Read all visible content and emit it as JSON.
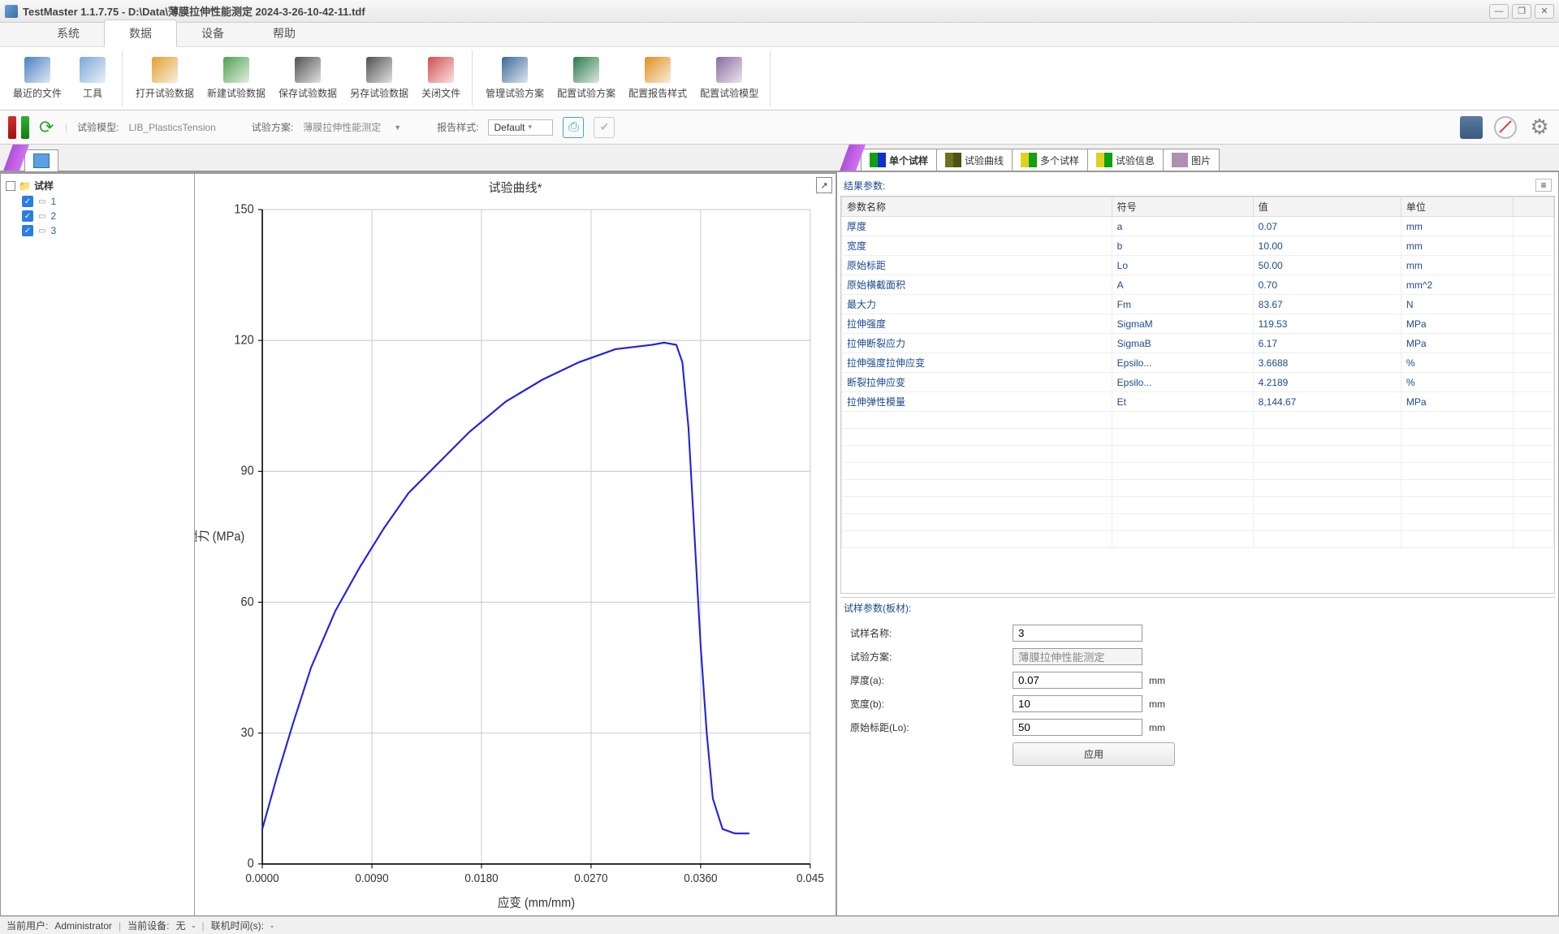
{
  "window": {
    "title": "TestMaster 1.1.7.75 - D:\\Data\\薄膜拉伸性能测定 2024-3-26-10-42-11.tdf"
  },
  "menubar": {
    "items": [
      "系统",
      "数据",
      "设备",
      "帮助"
    ],
    "active_index": 1
  },
  "ribbon": {
    "groups": [
      {
        "items": [
          {
            "label": "最近的文件",
            "color": "#4a80c0"
          },
          {
            "label": "工具",
            "color": "#7aa8d8"
          }
        ]
      },
      {
        "items": [
          {
            "label": "打开试验数据",
            "color": "#e0a030"
          },
          {
            "label": "新建试验数据",
            "color": "#50a050"
          },
          {
            "label": "保存试验数据",
            "color": "#505050"
          },
          {
            "label": "另存试验数据",
            "color": "#505050"
          },
          {
            "label": "关闭文件",
            "color": "#d05050"
          }
        ]
      },
      {
        "items": [
          {
            "label": "管理试验方案",
            "color": "#3a6a9a"
          },
          {
            "label": "配置试验方案",
            "color": "#2a7a4a"
          },
          {
            "label": "配置报告样式",
            "color": "#e09020"
          },
          {
            "label": "配置试验模型",
            "color": "#8a6aa0"
          }
        ]
      }
    ]
  },
  "toolbar2": {
    "test_model_label": "试验模型:",
    "test_model_value": "LIB_PlasticsTension",
    "test_plan_label": "试验方案:",
    "test_plan_value": "薄膜拉伸性能测定",
    "report_style_label": "报告样式:",
    "report_style_value": "Default"
  },
  "tree": {
    "root_label": "试样",
    "items": [
      {
        "num": "1",
        "checked": true
      },
      {
        "num": "2",
        "checked": true
      },
      {
        "num": "3",
        "checked": true
      }
    ]
  },
  "chart": {
    "title": "试验曲线*",
    "x_label": "应变 (mm/mm)",
    "y_label": "应力 (MPa)",
    "x_ticks": [
      "0.0000",
      "0.0090",
      "0.0180",
      "0.0270",
      "0.0360",
      "0.045"
    ],
    "y_ticks": [
      "0",
      "30",
      "60",
      "90",
      "120",
      "150"
    ],
    "xlim": [
      0,
      0.045
    ],
    "ylim": [
      0,
      150
    ],
    "line_color": "#2020e0",
    "grid_color": "#cccccc",
    "series": [
      [
        0.0,
        8
      ],
      [
        0.0012,
        20
      ],
      [
        0.0025,
        32
      ],
      [
        0.004,
        45
      ],
      [
        0.006,
        58
      ],
      [
        0.008,
        68
      ],
      [
        0.01,
        77
      ],
      [
        0.012,
        85
      ],
      [
        0.0145,
        92
      ],
      [
        0.017,
        99
      ],
      [
        0.02,
        106
      ],
      [
        0.023,
        111
      ],
      [
        0.026,
        115
      ],
      [
        0.029,
        118
      ],
      [
        0.032,
        119
      ],
      [
        0.033,
        119.5
      ],
      [
        0.034,
        119
      ],
      [
        0.0345,
        115
      ],
      [
        0.035,
        100
      ],
      [
        0.0355,
        75
      ],
      [
        0.036,
        50
      ],
      [
        0.0365,
        30
      ],
      [
        0.037,
        15
      ],
      [
        0.0378,
        8
      ],
      [
        0.0388,
        7
      ],
      [
        0.04,
        7
      ]
    ]
  },
  "right_tabs": {
    "items": [
      {
        "label": "单个试样",
        "colors": [
          "#10a010",
          "#1030d0"
        ]
      },
      {
        "label": "试验曲线",
        "colors": [
          "#707020",
          "#505010"
        ]
      },
      {
        "label": "多个试样",
        "colors": [
          "#e0d020",
          "#10a010"
        ]
      },
      {
        "label": "试验信息",
        "colors": [
          "#e0d020",
          "#10a010"
        ]
      },
      {
        "label": "图片",
        "colors": [
          "#b090b0",
          "#b090b0"
        ]
      }
    ],
    "active_index": 0
  },
  "results": {
    "section_title": "结果参数:",
    "columns": [
      "参数名称",
      "符号",
      "值",
      "单位"
    ],
    "rows": [
      [
        "厚度",
        "a",
        "0.07",
        "mm"
      ],
      [
        "宽度",
        "b",
        "10.00",
        "mm"
      ],
      [
        "原始标距",
        "Lo",
        "50.00",
        "mm"
      ],
      [
        "原始横截面积",
        "A",
        "0.70",
        "mm^2"
      ],
      [
        "最大力",
        "Fm",
        "83.67",
        "N"
      ],
      [
        "拉伸强度",
        "SigmaM",
        "119.53",
        "MPa"
      ],
      [
        "拉伸断裂应力",
        "SigmaB",
        "6.17",
        "MPa"
      ],
      [
        "拉伸强度拉伸应变",
        "Epsilo...",
        "3.6688",
        "%"
      ],
      [
        "断裂拉伸应变",
        "Epsilo...",
        "4.2189",
        "%"
      ],
      [
        "拉伸弹性模量",
        "Et",
        "8,144.67",
        "MPa"
      ]
    ]
  },
  "sample_params": {
    "section_title": "试样参数(板材):",
    "rows": [
      {
        "label": "试样名称:",
        "value": "3",
        "unit": "",
        "enabled": true
      },
      {
        "label": "试验方案:",
        "value": "薄膜拉伸性能测定",
        "unit": "",
        "enabled": false
      },
      {
        "label": "厚度(a):",
        "value": "0.07",
        "unit": "mm",
        "enabled": true
      },
      {
        "label": "宽度(b):",
        "value": "10",
        "unit": "mm",
        "enabled": true
      },
      {
        "label": "原始标距(Lo):",
        "value": "50",
        "unit": "mm",
        "enabled": true
      }
    ],
    "apply_label": "应用"
  },
  "statusbar": {
    "user_label": "当前用户:",
    "user_value": "Administrator",
    "device_label": "当前设备:",
    "device_value": "无",
    "offline_label": "联机时间(s):",
    "offline_value": "-"
  }
}
